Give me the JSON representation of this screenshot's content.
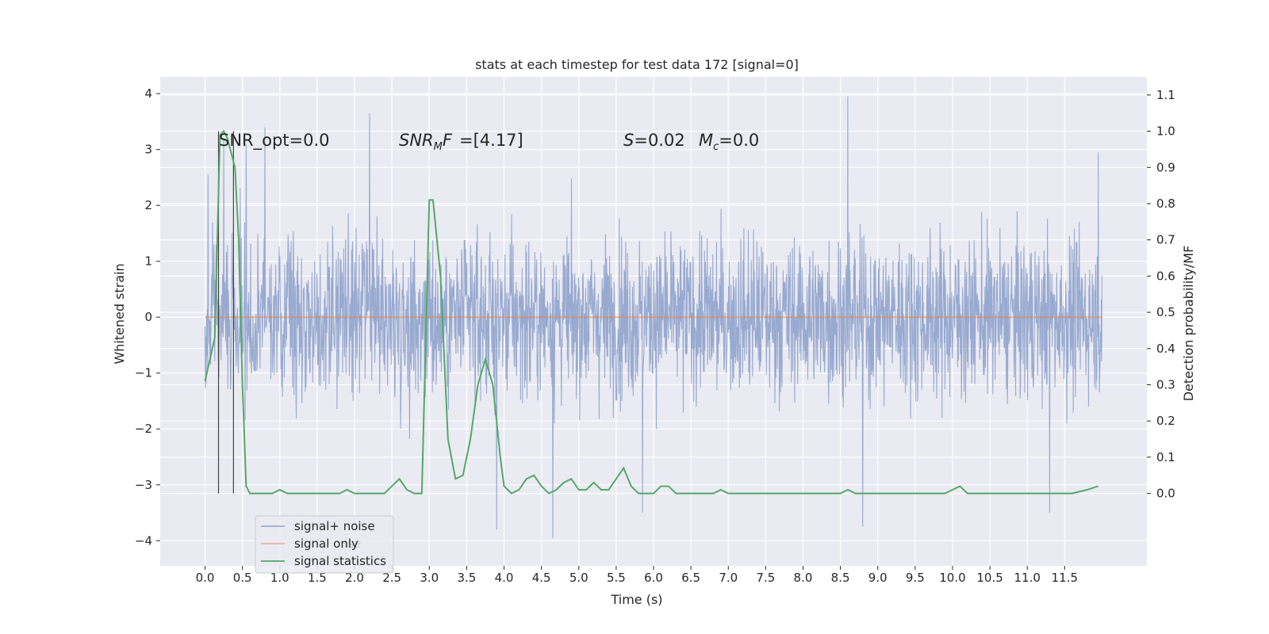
{
  "chart_data": {
    "type": "line",
    "title": "stats at each timestep for test data 172 [signal=0]",
    "xlabel": "Time (s)",
    "ylabel": "Whitened strain",
    "y2label": "Detection probability/MF",
    "xlim": [
      -0.6,
      12.6
    ],
    "ylim": [
      -4.45,
      4.3
    ],
    "y2lim": [
      -0.2,
      1.15
    ],
    "xticks": [
      0.0,
      0.5,
      1.0,
      1.5,
      2.0,
      2.5,
      3.0,
      3.5,
      4.0,
      4.5,
      5.0,
      5.5,
      6.0,
      6.5,
      7.0,
      7.5,
      8.0,
      8.5,
      9.0,
      9.5,
      10.0,
      10.5,
      11.0,
      11.5
    ],
    "xtick_labels": [
      "0.0",
      "0.5",
      "1.0",
      "1.5",
      "2.0",
      "2.5",
      "3.0",
      "3.5",
      "4.0",
      "4.5",
      "5.0",
      "5.5",
      "6.0",
      "6.5",
      "7.0",
      "7.5",
      "8.0",
      "8.5",
      "9.0",
      "9.5",
      "10.0",
      "10.5",
      "11.0",
      "11.5"
    ],
    "yticks": [
      -4,
      -3,
      -2,
      -1,
      0,
      1,
      2,
      3,
      4
    ],
    "ytick_labels": [
      "−4",
      "−3",
      "−2",
      "−1",
      "0",
      "1",
      "2",
      "3",
      "4"
    ],
    "y2ticks": [
      0.0,
      0.1,
      0.2,
      0.3,
      0.4,
      0.5,
      0.6,
      0.7,
      0.8,
      0.9,
      1.0,
      1.1
    ],
    "y2tick_labels": [
      "0.0",
      "0.1",
      "0.2",
      "0.3",
      "0.4",
      "0.5",
      "0.6",
      "0.7",
      "0.8",
      "0.9",
      "1.0",
      "1.1"
    ],
    "grid": true,
    "legend_position": "lower-left",
    "series": [
      {
        "name": "signal+ noise",
        "axis": "left",
        "color": "#8fa3cc",
        "description_range": [
          0.0,
          12.0
        ],
        "typical_amplitude": 1.5,
        "max_peaks": [
          [
            0.04,
            2.55
          ],
          [
            0.25,
            3.2
          ],
          [
            0.55,
            3.1
          ],
          [
            0.8,
            3.4
          ],
          [
            2.2,
            3.65
          ],
          [
            8.6,
            3.95
          ],
          [
            11.95,
            2.95
          ]
        ],
        "min_peaks": [
          [
            3.9,
            -3.8
          ],
          [
            4.65,
            -3.95
          ],
          [
            8.8,
            -3.75
          ],
          [
            11.3,
            -3.5
          ],
          [
            5.85,
            -3.5
          ]
        ]
      },
      {
        "name": "signal only",
        "axis": "left",
        "color": "#dd8452",
        "x": [
          0.0,
          12.0
        ],
        "y": [
          0.0,
          0.0
        ]
      },
      {
        "name": "signal statistics",
        "axis": "right",
        "color": "#55a868",
        "x": [
          0.0,
          0.13,
          0.2,
          0.25,
          0.3,
          0.4,
          0.45,
          0.5,
          0.55,
          0.6,
          0.65,
          0.7,
          0.8,
          0.9,
          1.0,
          1.1,
          1.2,
          1.5,
          1.8,
          1.9,
          2.0,
          2.2,
          2.4,
          2.5,
          2.6,
          2.7,
          2.8,
          2.9,
          3.0,
          3.05,
          3.15,
          3.25,
          3.35,
          3.45,
          3.55,
          3.65,
          3.75,
          3.85,
          3.95,
          4.0,
          4.05,
          4.1,
          4.2,
          4.3,
          4.4,
          4.5,
          4.6,
          4.7,
          4.8,
          4.9,
          5.0,
          5.1,
          5.2,
          5.3,
          5.4,
          5.5,
          5.6,
          5.7,
          5.8,
          5.9,
          6.0,
          6.1,
          6.2,
          6.3,
          6.4,
          6.6,
          6.8,
          6.9,
          7.0,
          7.2,
          7.4,
          8.0,
          8.4,
          8.5,
          8.6,
          8.7,
          8.8,
          9.2,
          9.6,
          9.9,
          10.0,
          10.1,
          10.2,
          10.4,
          10.8,
          11.0,
          11.2,
          11.4,
          11.6,
          11.8,
          11.95
        ],
        "y": [
          0.31,
          0.43,
          0.99,
          1.0,
          0.98,
          0.9,
          0.7,
          0.3,
          0.02,
          0.0,
          0.0,
          0.0,
          0.0,
          0.0,
          0.01,
          0.0,
          0.0,
          0.0,
          0.0,
          0.01,
          0.0,
          0.0,
          0.0,
          0.02,
          0.04,
          0.01,
          0.0,
          0.0,
          0.81,
          0.81,
          0.6,
          0.15,
          0.04,
          0.05,
          0.15,
          0.3,
          0.37,
          0.3,
          0.1,
          0.02,
          0.01,
          0.0,
          0.01,
          0.04,
          0.05,
          0.02,
          0.0,
          0.01,
          0.03,
          0.04,
          0.01,
          0.01,
          0.03,
          0.01,
          0.01,
          0.04,
          0.07,
          0.02,
          0.0,
          0.0,
          0.0,
          0.02,
          0.02,
          0.0,
          0.0,
          0.0,
          0.0,
          0.01,
          0.0,
          0.0,
          0.0,
          0.0,
          0.0,
          0.0,
          0.01,
          0.0,
          0.0,
          0.0,
          0.0,
          0.0,
          0.01,
          0.02,
          0.0,
          0.0,
          0.0,
          0.0,
          0.0,
          0.0,
          0.0,
          0.01,
          0.02
        ]
      }
    ],
    "vlines": [
      0.18,
      0.38
    ],
    "annotations": {
      "snr_opt": "SNR_opt=0.0",
      "snr_mf_main": "SNR",
      "snr_mf_sub": "M",
      "snr_mf_rest": "F=[4.17]",
      "s_label": "S",
      "s_value": "=0.02",
      "mc_label": "M",
      "mc_sub": "c",
      "mc_value": "=0.0"
    },
    "legend_ghost_text": "ise"
  }
}
